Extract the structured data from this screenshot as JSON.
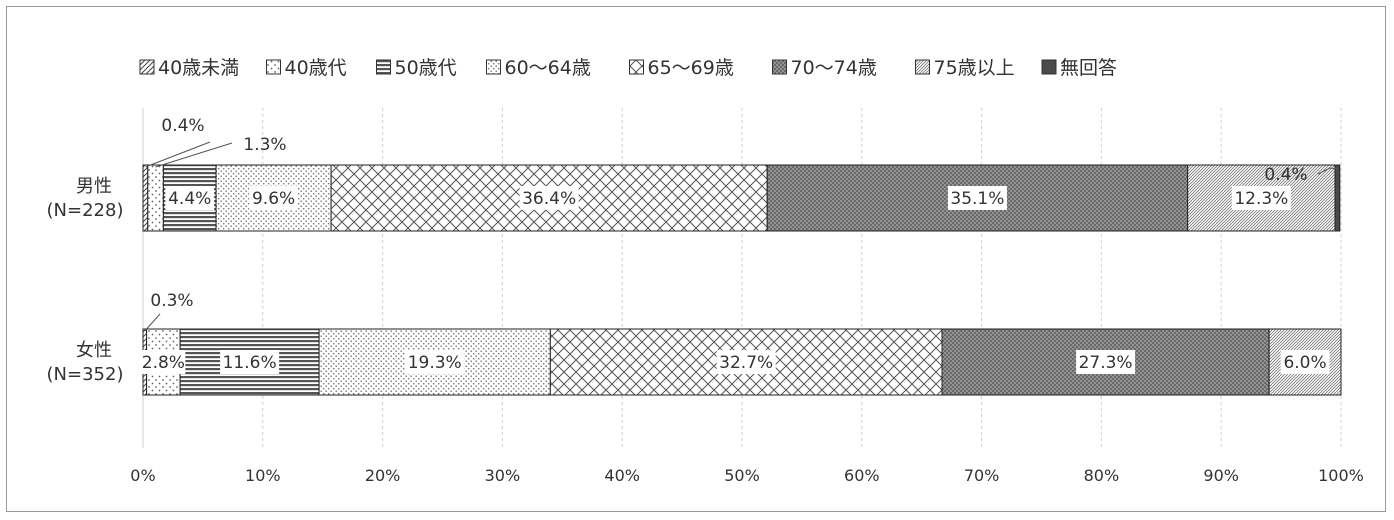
{
  "chart_data": {
    "type": "bar",
    "orientation": "horizontal",
    "stacked": "100%",
    "categories": [
      {
        "name": "男性",
        "n": "(N=228)"
      },
      {
        "name": "女性",
        "n": "(N=352)"
      }
    ],
    "series": [
      {
        "name": "40歳未満",
        "values": [
          0.4,
          0.3
        ],
        "labels": [
          "0.4%",
          "0.3%"
        ],
        "pattern": "diag",
        "color": "#555555"
      },
      {
        "name": "40歳代",
        "values": [
          1.3,
          2.8
        ],
        "labels": [
          "1.3%",
          "2.8%"
        ],
        "pattern": "dots-sparse",
        "color": "#444444"
      },
      {
        "name": "50歳代",
        "values": [
          4.4,
          11.6
        ],
        "labels": [
          "4.4%",
          "11.6%"
        ],
        "pattern": "hstripe",
        "color": "#555555"
      },
      {
        "name": "60～64歳",
        "values": [
          9.6,
          19.3
        ],
        "labels": [
          "9.6%",
          "19.3%"
        ],
        "pattern": "dots",
        "color": "#666666"
      },
      {
        "name": "65～69歳",
        "values": [
          36.4,
          32.7
        ],
        "labels": [
          "36.4%",
          "32.7%"
        ],
        "pattern": "cross",
        "color": "#555555"
      },
      {
        "name": "70～74歳",
        "values": [
          35.1,
          27.3
        ],
        "labels": [
          "35.1%",
          "27.3%"
        ],
        "pattern": "dense",
        "color": "#5a5a5a"
      },
      {
        "name": "75歳以上",
        "values": [
          12.3,
          6.0
        ],
        "labels": [
          "12.3%",
          "6.0%"
        ],
        "pattern": "fine-diag",
        "color": "#777777"
      },
      {
        "name": "無回答",
        "values": [
          0.4,
          0.0
        ],
        "labels": [
          "0.4%",
          ""
        ],
        "pattern": "solid",
        "color": "#555555"
      }
    ],
    "x_ticks": [
      "0%",
      "10%",
      "20%",
      "30%",
      "40%",
      "50%",
      "60%",
      "70%",
      "80%",
      "90%",
      "100%"
    ],
    "xlim": [
      0,
      100
    ],
    "grid": true,
    "legend_position": "top"
  }
}
